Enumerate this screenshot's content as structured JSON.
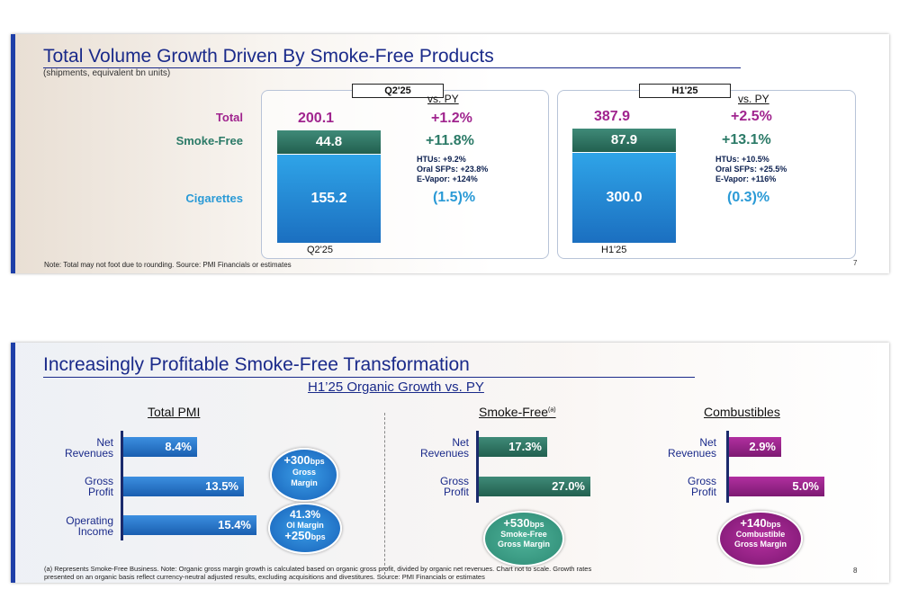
{
  "slide1": {
    "title": "Total Volume Growth Driven By Smoke-Free Products",
    "subtitle": "(shipments, equivalent bn units)",
    "row_labels": {
      "total": "Total",
      "smoke_free": "Smoke-Free",
      "cigarettes": "Cigarettes"
    },
    "panels": [
      {
        "tag": "Q2'25",
        "vs_py": "vs. PY",
        "total": "200.1",
        "total_growth": "+1.2%",
        "smoke_free": "44.8",
        "smoke_free_growth": "+11.8%",
        "details": [
          "HTUs: +9.2%",
          "Oral SFPs: +23.8%",
          "E-Vapor: +124%"
        ],
        "cigarettes": "155.2",
        "cigarettes_growth": "(1.5)%",
        "base_label": "Q2'25"
      },
      {
        "tag": "H1'25",
        "vs_py": "vs. PY",
        "total": "387.9",
        "total_growth": "+2.5%",
        "smoke_free": "87.9",
        "smoke_free_growth": "+13.1%",
        "details": [
          "HTUs: +10.5%",
          "Oral SFPs: +25.5%",
          "E-Vapor: +116%"
        ],
        "cigarettes": "300.0",
        "cigarettes_growth": "(0.3)%",
        "base_label": "H1'25"
      }
    ],
    "footnote": "Note: Total may not foot due to rounding. Source: PMI Financials or estimates",
    "page_number": "7"
  },
  "slide2": {
    "title": "Increasingly Profitable Smoke-Free Transformation",
    "center_heading": "H1’25 Organic Growth vs. PY",
    "columns": {
      "total_pmi": {
        "heading": "Total PMI",
        "rows": [
          {
            "label_1": "Net",
            "label_2": "Revenues",
            "value": "8.4%"
          },
          {
            "label_1": "Gross",
            "label_2": "Profit",
            "value": "13.5%"
          },
          {
            "label_1": "Operating",
            "label_2": "Income",
            "value": "15.4%"
          }
        ],
        "bubble1": {
          "line1": "+300",
          "unit": "bps",
          "line2": "Gross",
          "line3": "Margin"
        },
        "bubble2": {
          "line1": "41.3%",
          "line2": "OI Margin",
          "line3": "+250",
          "unit": "bps"
        }
      },
      "smoke_free": {
        "heading": "Smoke-Free",
        "heading_sup": "(a)",
        "rows": [
          {
            "label_1": "Net",
            "label_2": "Revenues",
            "value": "17.3%"
          },
          {
            "label_1": "Gross",
            "label_2": "Profit",
            "value": "27.0%"
          }
        ],
        "bubble": {
          "line1": "+530",
          "unit": "bps",
          "line2": "Smoke-Free",
          "line3": "Gross Margin"
        }
      },
      "combustibles": {
        "heading": "Combustibles",
        "rows": [
          {
            "label_1": "Net",
            "label_2": "Revenues",
            "value": "2.9%"
          },
          {
            "label_1": "Gross",
            "label_2": "Profit",
            "value": "5.0%"
          }
        ],
        "bubble": {
          "line1": "+140",
          "unit": "bps",
          "line2": "Combustible",
          "line3": "Gross Margin"
        }
      }
    },
    "footnote_1": "(a) Represents Smoke-Free Business. Note: Organic gross margin growth is calculated based on organic gross profit, divided by organic net revenues. Chart not to scale. Growth rates",
    "footnote_2": "presented on an organic basis reflect currency-neutral adjusted results, excluding acquisitions and divestitures. Source: PMI Financials or estimates",
    "page_number": "8"
  },
  "colors": {
    "title_blue": "#1a2a8a",
    "smoke_free_green": "#2b7a67",
    "cigarettes_blue": "#2a9ad6",
    "total_magenta": "#a0248e",
    "combustibles_purple": "#8c1d80"
  }
}
